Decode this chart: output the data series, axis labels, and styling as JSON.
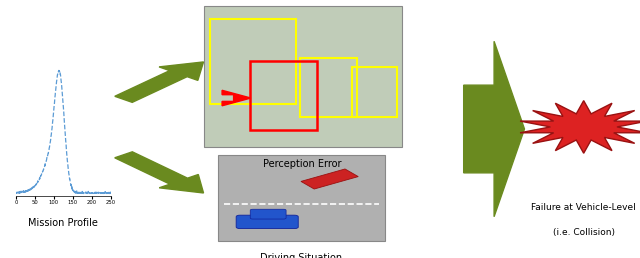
{
  "background_color": "#ffffff",
  "arrow_color": "#6a8a1f",
  "label_mission": "Mission Profile",
  "label_perception": "Perception Error",
  "label_driving": "Driving Situation",
  "label_failure_line1": "Failure at Vehicle-Level",
  "label_failure_line2": "(i.e. Collision)",
  "mission_plot_color": "#5b9bd5",
  "starburst_color": "#dd2222",
  "gray_box_color": "#b0b0b0",
  "street_box_color": "#c0ccb8"
}
